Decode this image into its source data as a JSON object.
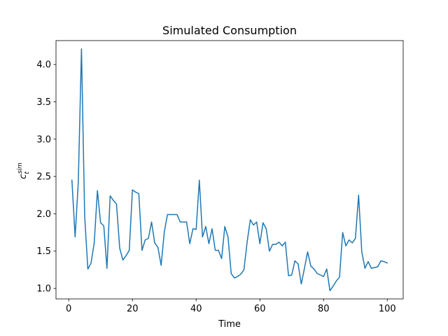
{
  "chart_data": {
    "type": "line",
    "title": "Simulated Consumption",
    "xlabel": "Time",
    "ylabel": "c_t^sim",
    "ylabel_base": "c",
    "ylabel_sub": "t",
    "ylabel_sup": "sim",
    "xlim": [
      -4,
      105
    ],
    "ylim": [
      0.86,
      4.32
    ],
    "grid": false,
    "legend": "none",
    "x_ticks": [
      0,
      20,
      40,
      60,
      80,
      100
    ],
    "x_tick_labels": [
      "0",
      "20",
      "40",
      "60",
      "80",
      "100"
    ],
    "y_ticks": [
      1.0,
      1.5,
      2.0,
      2.5,
      3.0,
      3.5,
      4.0
    ],
    "y_tick_labels": [
      "1.0",
      "1.5",
      "2.0",
      "2.5",
      "3.0",
      "3.5",
      "4.0"
    ],
    "series": [
      {
        "color": "#1f77b4",
        "x": [
          1,
          2,
          3,
          4,
          5,
          6,
          7,
          8,
          9,
          10,
          11,
          12,
          13,
          14,
          15,
          16,
          17,
          18,
          19,
          20,
          21,
          22,
          23,
          24,
          25,
          26,
          27,
          28,
          29,
          30,
          31,
          32,
          33,
          34,
          35,
          36,
          37,
          38,
          39,
          40,
          41,
          42,
          43,
          44,
          45,
          46,
          47,
          48,
          49,
          50,
          51,
          52,
          53,
          54,
          55,
          56,
          57,
          58,
          59,
          60,
          61,
          62,
          63,
          64,
          65,
          66,
          67,
          68,
          69,
          70,
          71,
          72,
          73,
          74,
          75,
          76,
          77,
          78,
          79,
          80,
          81,
          82,
          83,
          84,
          85,
          86,
          87,
          88,
          89,
          90,
          91,
          92,
          93,
          94,
          95,
          96,
          97,
          98,
          99,
          100
        ],
        "y": [
          2.45,
          1.69,
          2.42,
          4.21,
          1.97,
          1.26,
          1.34,
          1.61,
          2.31,
          1.88,
          1.84,
          1.27,
          2.24,
          2.18,
          2.13,
          1.54,
          1.38,
          1.44,
          1.51,
          2.32,
          2.29,
          2.27,
          1.51,
          1.65,
          1.67,
          1.89,
          1.61,
          1.55,
          1.31,
          1.76,
          1.99,
          1.99,
          1.99,
          1.99,
          1.89,
          1.89,
          1.89,
          1.6,
          1.8,
          1.79,
          2.45,
          1.69,
          1.83,
          1.6,
          1.8,
          1.51,
          1.51,
          1.4,
          1.83,
          1.69,
          1.2,
          1.14,
          1.16,
          1.19,
          1.25,
          1.62,
          1.92,
          1.85,
          1.89,
          1.6,
          1.88,
          1.8,
          1.5,
          1.59,
          1.59,
          1.62,
          1.57,
          1.62,
          1.17,
          1.18,
          1.37,
          1.33,
          1.06,
          1.27,
          1.49,
          1.3,
          1.26,
          1.2,
          1.18,
          1.16,
          1.26,
          0.97,
          1.03,
          1.1,
          1.15,
          1.75,
          1.57,
          1.65,
          1.61,
          1.67,
          2.25,
          1.49,
          1.27,
          1.36,
          1.27,
          1.28,
          1.29,
          1.37,
          1.36,
          1.34
        ]
      }
    ]
  }
}
